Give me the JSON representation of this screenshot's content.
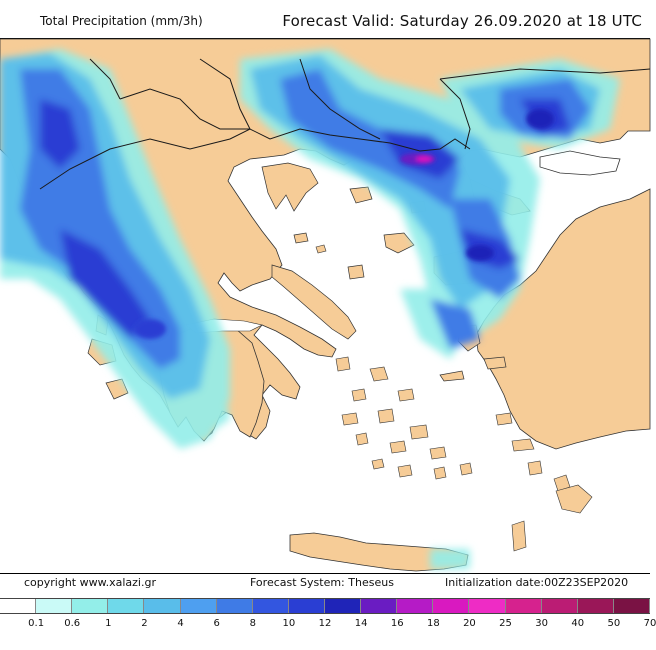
{
  "header": {
    "title": "Total Precipitation (mm/3h)",
    "valid": "Forecast Valid:  Saturday 26.09.2020 at 18 UTC"
  },
  "footer": {
    "copyright": "copyright www.xalazi.gr",
    "system": "Forecast System: Theseus",
    "init": "Initialization date:00Z23SEP2020"
  },
  "colors": {
    "sea": "#ffffff",
    "land": "#f6cc97",
    "border": "#1a1a1a"
  },
  "legend": {
    "colors": [
      "#ffffff",
      "#cafaf7",
      "#93eee9",
      "#6fd9ea",
      "#59bdea",
      "#4e9ff0",
      "#3f7be6",
      "#3356e0",
      "#2a3ed3",
      "#1f24b8",
      "#6a1cc2",
      "#b51bc6",
      "#d919c0",
      "#ee2cc5",
      "#d6228e",
      "#bb1c74",
      "#9a1758",
      "#7a1244"
    ],
    "labels": [
      "0.1",
      "0.6",
      "1",
      "2",
      "4",
      "6",
      "8",
      "10",
      "12",
      "14",
      "16",
      "18",
      "20",
      "25",
      "30",
      "40",
      "50",
      "70"
    ]
  }
}
